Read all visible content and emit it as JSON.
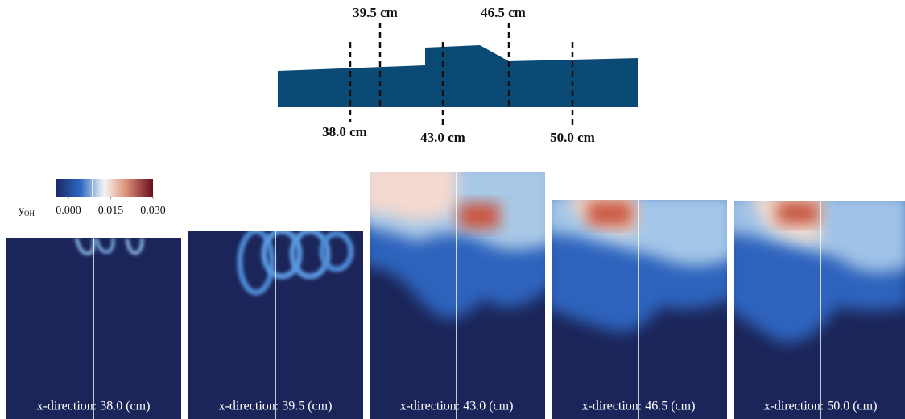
{
  "schematic": {
    "labels": [
      "39.5 cm",
      "46.5 cm",
      "38.0 cm",
      "43.0 cm",
      "50.0 cm"
    ]
  },
  "colorbar": {
    "label": "y",
    "subscript": "OH",
    "ticks": [
      {
        "value": 0,
        "label": "0.000"
      },
      {
        "value": 0.015,
        "label": "0.015"
      },
      {
        "value": 0.03,
        "label": "0.030"
      }
    ]
  },
  "panels": [
    {
      "caption": "x-direction: 38.0 (cm)"
    },
    {
      "caption": "x-direction: 39.5 (cm)"
    },
    {
      "caption": "x-direction: 43.0 (cm)"
    },
    {
      "caption": "x-direction: 46.5 (cm)"
    },
    {
      "caption": "x-direction: 50.0 (cm)"
    }
  ]
}
